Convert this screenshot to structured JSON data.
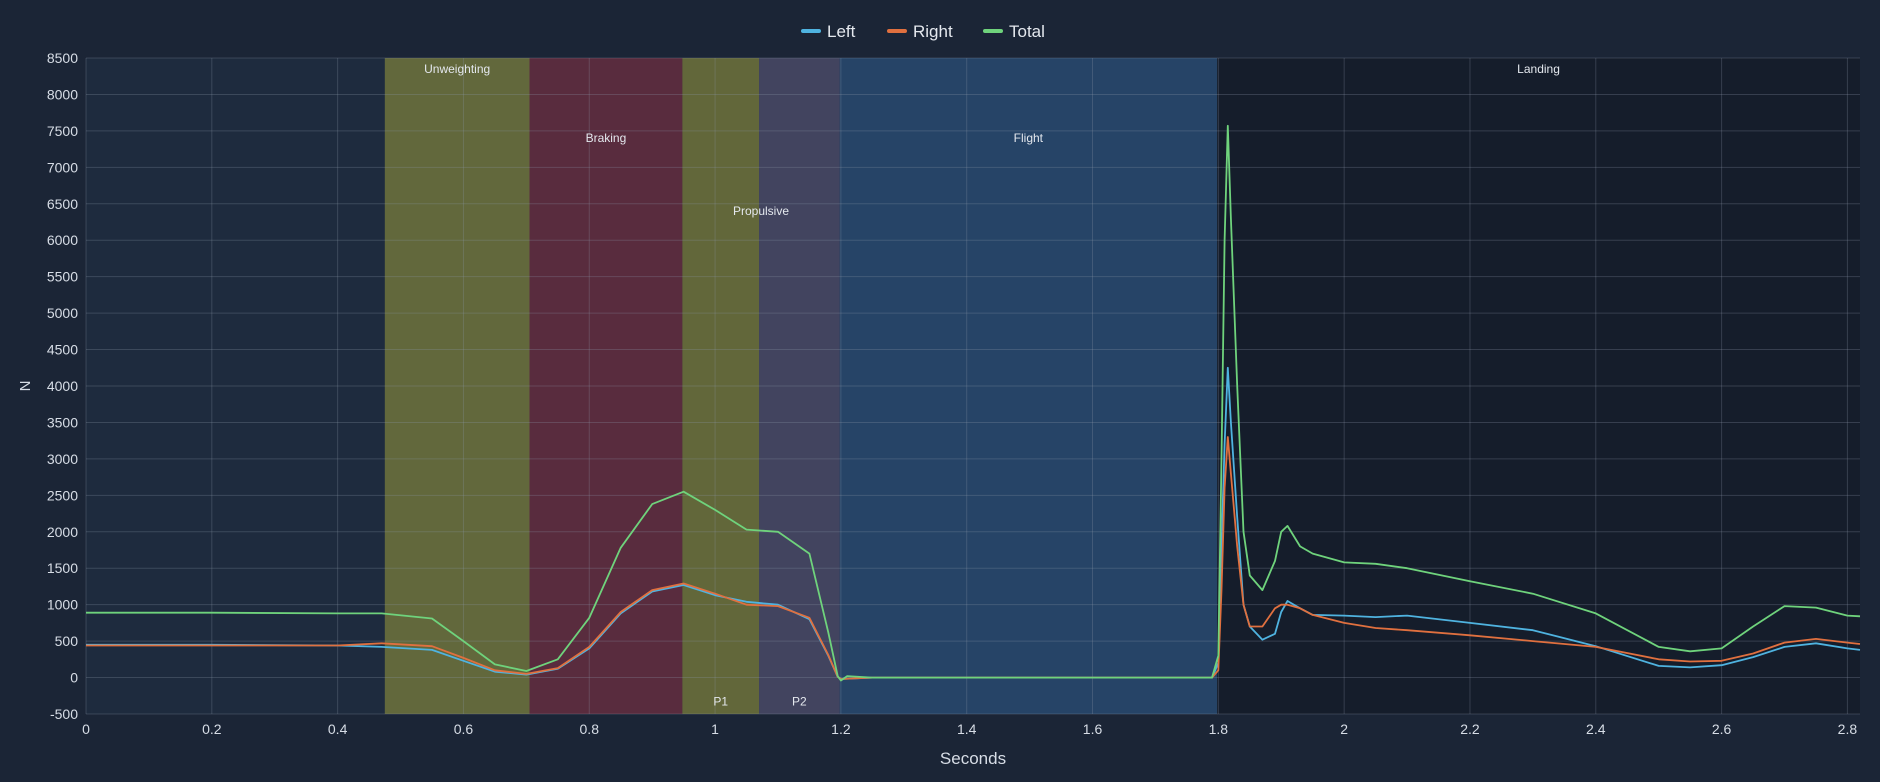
{
  "chart_data": {
    "type": "line",
    "title": "",
    "xlabel": "Seconds",
    "ylabel": "N",
    "xlim": [
      0,
      2.82
    ],
    "ylim": [
      -500,
      8500
    ],
    "x_ticks": [
      "0",
      "0.2",
      "0.4",
      "0.6",
      "0.8",
      "1",
      "1.2",
      "1.4",
      "1.6",
      "1.8",
      "2",
      "2.2",
      "2.4",
      "2.6",
      "2.8"
    ],
    "y_ticks": [
      "-500",
      "0",
      "500",
      "1000",
      "1500",
      "2000",
      "2500",
      "3000",
      "3500",
      "4000",
      "4500",
      "5000",
      "5500",
      "6000",
      "6500",
      "7000",
      "7500",
      "8000",
      "8500"
    ],
    "grid": true,
    "legend_position": "top-center",
    "phases": [
      {
        "name": "Unweighting",
        "start": 0.475,
        "end": 0.705,
        "color": "#9a9a3a",
        "label_y": 8350
      },
      {
        "name": "Braking",
        "start": 0.705,
        "end": 0.948,
        "color": "#8a2e3e",
        "label_y": 7400
      },
      {
        "name": "Propulsive",
        "start": 0.948,
        "end": 1.198,
        "color": "#8f9038",
        "label_y": 6400
      },
      {
        "name": "Flight",
        "start": 1.198,
        "end": 1.798,
        "color": "#2d5a88",
        "label_y": 7400
      },
      {
        "name": "Landing",
        "start": 1.798,
        "end": 2.82,
        "color": "#141b28",
        "label_y": 8350
      }
    ],
    "subphases": [
      {
        "name": "P1",
        "start": 0.948,
        "end": 1.07,
        "color": "#8f9038"
      },
      {
        "name": "P2",
        "start": 1.07,
        "end": 1.198,
        "color": "#5a5576"
      }
    ],
    "series": [
      {
        "name": "Left",
        "color": "#4fb3e0",
        "x": [
          0,
          0.2,
          0.4,
          0.47,
          0.55,
          0.6,
          0.65,
          0.7,
          0.75,
          0.8,
          0.85,
          0.9,
          0.95,
          1.0,
          1.05,
          1.1,
          1.15,
          1.18,
          1.195,
          1.2,
          1.25,
          1.5,
          1.79,
          1.8,
          1.805,
          1.81,
          1.815,
          1.82,
          1.83,
          1.84,
          1.85,
          1.87,
          1.89,
          1.9,
          1.91,
          1.93,
          1.95,
          2.0,
          2.05,
          2.1,
          2.2,
          2.3,
          2.4,
          2.5,
          2.55,
          2.6,
          2.65,
          2.7,
          2.75,
          2.8,
          2.82
        ],
        "y": [
          450,
          450,
          440,
          420,
          380,
          230,
          80,
          40,
          120,
          400,
          880,
          1180,
          1270,
          1130,
          1040,
          1000,
          800,
          300,
          10,
          -20,
          0,
          0,
          0,
          200,
          1800,
          3200,
          4250,
          3500,
          2200,
          1000,
          700,
          520,
          600,
          900,
          1050,
          950,
          860,
          850,
          830,
          850,
          750,
          650,
          430,
          160,
          140,
          170,
          280,
          420,
          470,
          400,
          380
        ]
      },
      {
        "name": "Right",
        "color": "#e0703f",
        "x": [
          0,
          0.2,
          0.4,
          0.47,
          0.55,
          0.6,
          0.65,
          0.7,
          0.75,
          0.8,
          0.85,
          0.9,
          0.95,
          1.0,
          1.05,
          1.1,
          1.15,
          1.18,
          1.195,
          1.2,
          1.25,
          1.5,
          1.79,
          1.8,
          1.805,
          1.81,
          1.815,
          1.82,
          1.83,
          1.84,
          1.85,
          1.87,
          1.89,
          1.9,
          1.91,
          1.93,
          1.95,
          2.0,
          2.05,
          2.1,
          2.2,
          2.3,
          2.4,
          2.5,
          2.55,
          2.6,
          2.65,
          2.7,
          2.75,
          2.8,
          2.82
        ],
        "y": [
          440,
          440,
          440,
          470,
          430,
          270,
          100,
          50,
          130,
          420,
          900,
          1200,
          1290,
          1150,
          1000,
          980,
          820,
          310,
          10,
          -20,
          0,
          0,
          0,
          100,
          1200,
          2600,
          3300,
          2800,
          1800,
          1000,
          700,
          700,
          950,
          1000,
          1000,
          950,
          860,
          750,
          680,
          650,
          580,
          500,
          420,
          250,
          220,
          230,
          330,
          480,
          530,
          480,
          460
        ]
      },
      {
        "name": "Total",
        "color": "#6fd37c",
        "x": [
          0,
          0.2,
          0.4,
          0.47,
          0.55,
          0.6,
          0.65,
          0.7,
          0.75,
          0.8,
          0.85,
          0.9,
          0.95,
          1.0,
          1.05,
          1.1,
          1.15,
          1.18,
          1.195,
          1.2,
          1.21,
          1.25,
          1.5,
          1.79,
          1.8,
          1.805,
          1.81,
          1.815,
          1.82,
          1.83,
          1.84,
          1.85,
          1.87,
          1.89,
          1.9,
          1.91,
          1.93,
          1.95,
          2.0,
          2.05,
          2.1,
          2.2,
          2.3,
          2.4,
          2.5,
          2.55,
          2.6,
          2.65,
          2.7,
          2.75,
          2.8,
          2.82
        ],
        "y": [
          890,
          890,
          880,
          880,
          810,
          500,
          180,
          90,
          250,
          820,
          1780,
          2380,
          2550,
          2300,
          2030,
          2000,
          1700,
          620,
          20,
          -40,
          20,
          0,
          0,
          0,
          300,
          3000,
          6000,
          7570,
          6300,
          4000,
          2000,
          1400,
          1200,
          1600,
          2000,
          2080,
          1800,
          1700,
          1580,
          1560,
          1500,
          1320,
          1150,
          880,
          420,
          360,
          400,
          700,
          980,
          960,
          850,
          840
        ]
      }
    ]
  }
}
